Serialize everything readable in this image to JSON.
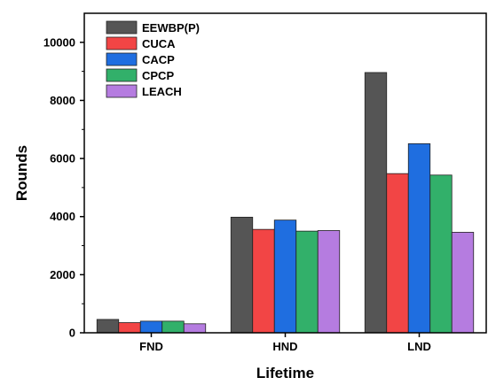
{
  "chart_data": {
    "type": "bar",
    "title": "",
    "xlabel": "Lifetime",
    "ylabel": "Rounds",
    "categories": [
      "FND",
      "HND",
      "LND"
    ],
    "ylim": [
      0,
      11000
    ],
    "yticks": [
      0,
      2000,
      4000,
      6000,
      8000,
      10000
    ],
    "yticklabels": [
      "0",
      "2000",
      "4000",
      "6000",
      "8000",
      "10000"
    ],
    "legend_position": "top-left",
    "grid": false,
    "series": [
      {
        "name": "EEWBP(P)",
        "color": "#555555",
        "values": [
          460,
          3980,
          8960
        ]
      },
      {
        "name": "CUCA",
        "color": "#f24545",
        "values": [
          350,
          3560,
          5480
        ]
      },
      {
        "name": "CACP",
        "color": "#1f6ee0",
        "values": [
          400,
          3880,
          6510
        ]
      },
      {
        "name": "CPCP",
        "color": "#32b06a",
        "values": [
          400,
          3500,
          5430
        ]
      },
      {
        "name": "LEACH",
        "color": "#b57ce0",
        "values": [
          310,
          3520,
          3460
        ]
      }
    ]
  }
}
